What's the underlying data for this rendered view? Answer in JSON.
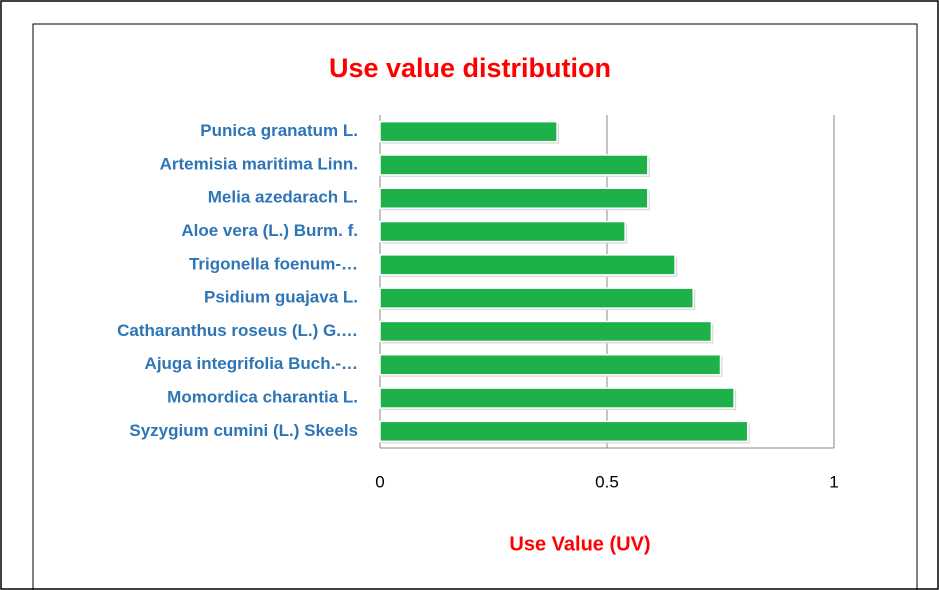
{
  "chart_data": {
    "type": "bar",
    "orientation": "horizontal",
    "title": "Use value distribution",
    "x_label": "Use Value (UV)",
    "categories": [
      "Punica granatum L.",
      "Artemisia maritima Linn.",
      "Melia azedarach L.",
      "Aloe vera (L.) Burm. f.",
      "Trigonella foenum-…",
      "Psidium guajava L.",
      "Catharanthus roseus (L.) G.…",
      "Ajuga integrifolia Buch.-…",
      "Momordica charantia L.",
      "Syzygium cumini (L.) Skeels"
    ],
    "values": [
      0.39,
      0.59,
      0.59,
      0.54,
      0.65,
      0.69,
      0.73,
      0.75,
      0.78,
      0.81
    ],
    "color": "#1eb14a",
    "xlim": [
      0,
      1
    ],
    "xticks": [
      0,
      0.5,
      1
    ],
    "grid": true
  }
}
